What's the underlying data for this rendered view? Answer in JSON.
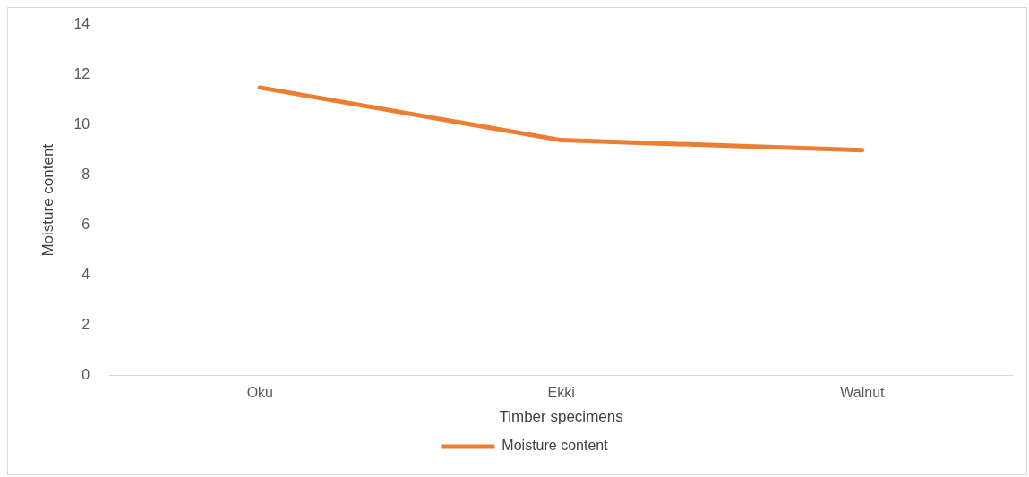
{
  "chart_data": {
    "type": "line",
    "xlabel": "Timber specimens",
    "ylabel": "Moisture content",
    "categories": [
      "Oku",
      "Ekki",
      "Walnut"
    ],
    "series": [
      {
        "name": "Moisture content",
        "color": "#ed7d31",
        "values": [
          11.5,
          9.4,
          9.0
        ]
      }
    ],
    "ylim": [
      0,
      14
    ],
    "yticks": [
      0,
      2,
      4,
      6,
      8,
      10,
      12,
      14
    ],
    "grid": false,
    "legend": "bottom",
    "marker": "none",
    "line_style": "solid"
  }
}
